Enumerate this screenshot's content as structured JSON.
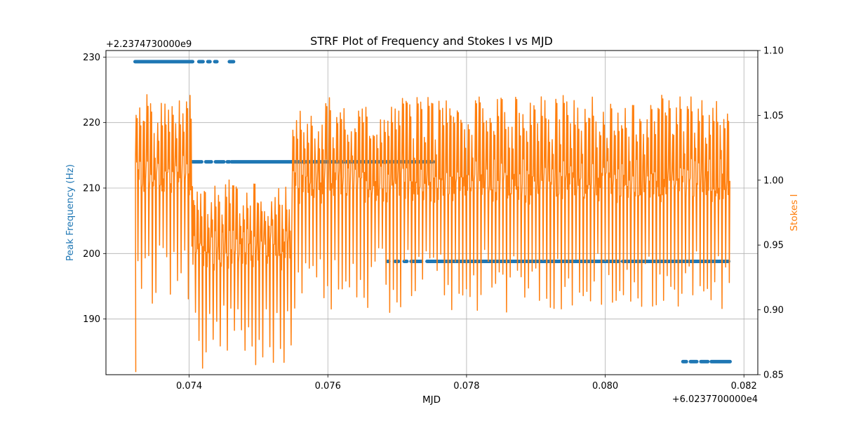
{
  "chart_data": {
    "type": "scatter+line",
    "title": "STRF Plot of Frequency and Stokes I vs MJD",
    "xlabel": "MJD",
    "x_offset_label": "+6.0237700000e4",
    "ylabel_left": "Peak Frequency (Hz)",
    "y_left_offset_label": "+2.2374730000e9",
    "ylabel_right": "Stokes I",
    "xlim": [
      0.0728,
      0.0822
    ],
    "ylim_left": [
      181.5,
      231.0
    ],
    "ylim_right": [
      0.85,
      1.1
    ],
    "xticks": [
      0.074,
      0.076,
      0.078,
      0.08,
      0.082
    ],
    "xtick_labels": [
      "0.074",
      "0.076",
      "0.078",
      "0.080",
      "0.082"
    ],
    "yticks_left": [
      190,
      200,
      210,
      220,
      230
    ],
    "ytick_labels_left": [
      "190",
      "200",
      "210",
      "220",
      "230"
    ],
    "yticks_right": [
      0.85,
      0.9,
      0.95,
      1.0,
      1.05,
      1.1
    ],
    "ytick_labels_right": [
      "0.85",
      "0.90",
      "0.95",
      "1.00",
      "1.05",
      "1.10"
    ],
    "grid": true,
    "colors": {
      "frequency": "#1f77b4",
      "stokes": "#ff7f0e"
    },
    "frequency_segments": [
      {
        "y": 229.3,
        "x_start": 0.07322,
        "x_end": 0.07405
      },
      {
        "y": 229.3,
        "x_start": 0.07414,
        "x_end": 0.0742
      },
      {
        "y": 229.3,
        "x_start": 0.07427,
        "x_end": 0.0743
      },
      {
        "y": 229.3,
        "x_start": 0.07437,
        "x_end": 0.0744
      },
      {
        "y": 229.3,
        "x_start": 0.07458,
        "x_end": 0.07464
      },
      {
        "y": 214.0,
        "x_start": 0.07405,
        "x_end": 0.07418
      },
      {
        "y": 214.0,
        "x_start": 0.07424,
        "x_end": 0.07432
      },
      {
        "y": 214.0,
        "x_start": 0.07438,
        "x_end": 0.0745
      },
      {
        "y": 214.0,
        "x_start": 0.07455,
        "x_end": 0.07458
      },
      {
        "y": 214.0,
        "x_start": 0.07461,
        "x_end": 0.07548
      },
      {
        "y": 214.0,
        "x_start": 0.07548,
        "x_end": 0.07752
      },
      {
        "y": 198.8,
        "x_start": 0.07686,
        "x_end": 0.07688
      },
      {
        "y": 198.8,
        "x_start": 0.07697,
        "x_end": 0.07702
      },
      {
        "y": 198.8,
        "x_start": 0.0771,
        "x_end": 0.07714
      },
      {
        "y": 198.8,
        "x_start": 0.0772,
        "x_end": 0.07735
      },
      {
        "y": 198.8,
        "x_start": 0.07743,
        "x_end": 0.0802
      },
      {
        "y": 198.8,
        "x_start": 0.08025,
        "x_end": 0.08178
      },
      {
        "y": 183.5,
        "x_start": 0.08112,
        "x_end": 0.08117
      },
      {
        "y": 183.5,
        "x_start": 0.08123,
        "x_end": 0.08132
      },
      {
        "y": 183.5,
        "x_start": 0.08138,
        "x_end": 0.08148
      },
      {
        "y": 183.5,
        "x_start": 0.08153,
        "x_end": 0.0818
      }
    ],
    "stokes_regions": [
      {
        "x_start": 0.07322,
        "x_end": 0.07405,
        "high": 1.045,
        "low": 0.955,
        "cycles": 16,
        "seed": 1
      },
      {
        "x_start": 0.07405,
        "x_end": 0.07548,
        "high": 0.985,
        "low": 0.905,
        "cycles": 28,
        "seed": 2
      },
      {
        "x_start": 0.07548,
        "x_end": 0.0818,
        "high": 1.045,
        "low": 0.948,
        "cycles": 120,
        "seed": 3
      }
    ],
    "stokes_start": {
      "x": 0.07323,
      "y": 0.852
    }
  }
}
